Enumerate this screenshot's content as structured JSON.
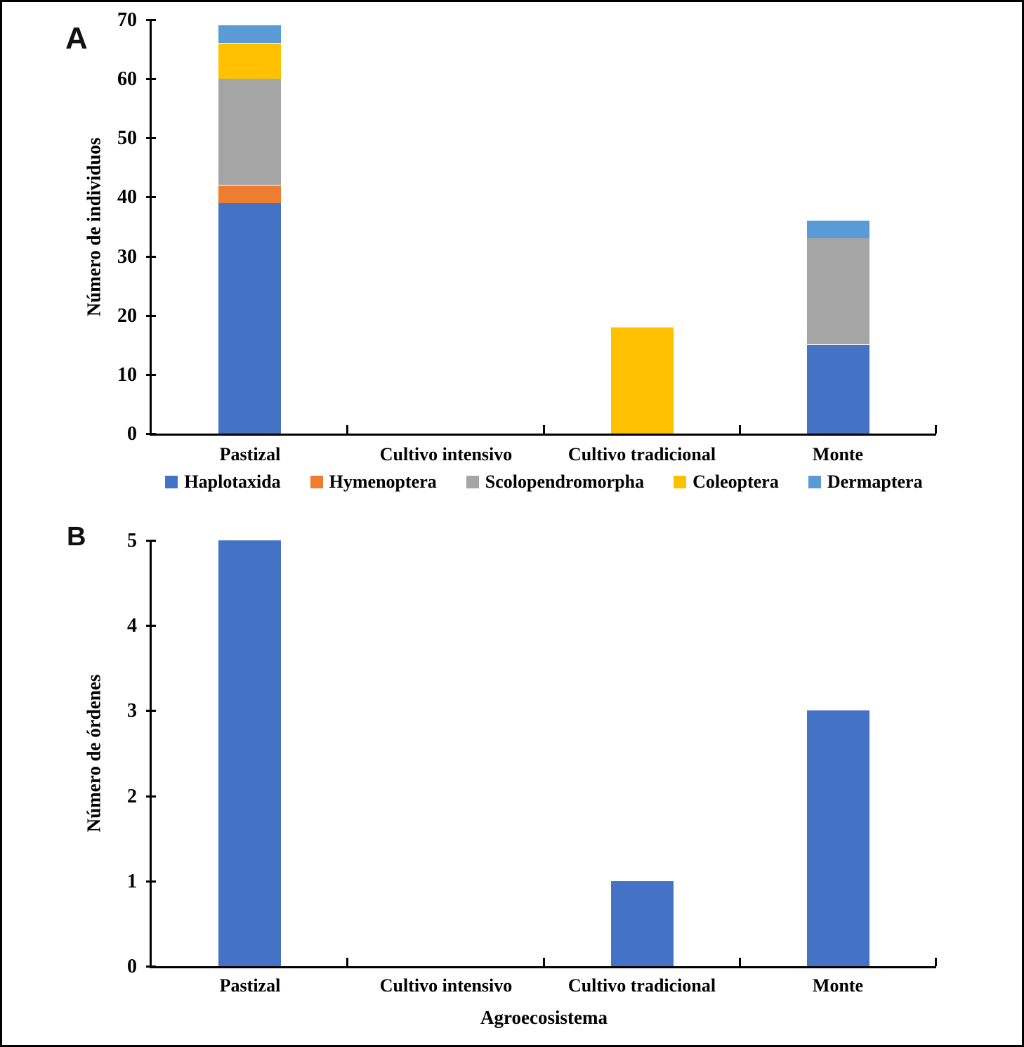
{
  "panels": [
    {
      "label": "A"
    },
    {
      "label": "B"
    }
  ],
  "colors": {
    "haplotaxida_blue": "#4472C4",
    "hymenoptera_orange": "#ED7D31",
    "scolopendromorpha_gray": "#A5A5A5",
    "coleoptera_yellow": "#FFC000",
    "dermaptera_light_blue": "#5B9BD5",
    "axis_black": "#000000"
  },
  "chart_data": [
    {
      "type": "bar",
      "subtype": "stacked",
      "panel": "A",
      "title": "",
      "xlabel": "",
      "ylabel": "Número de individuos",
      "categories": [
        "Pastizal",
        "Cultivo intensivo",
        "Cultivo tradicional",
        "Monte"
      ],
      "series": [
        {
          "name": "Haplotaxida",
          "color": "#4472C4",
          "values": [
            39,
            0,
            0,
            15
          ]
        },
        {
          "name": "Hymenoptera",
          "color": "#ED7D31",
          "values": [
            3,
            0,
            0,
            0
          ]
        },
        {
          "name": "Scolopendromorpha",
          "color": "#A5A5A5",
          "values": [
            18,
            0,
            0,
            18
          ]
        },
        {
          "name": "Coleoptera",
          "color": "#FFC000",
          "values": [
            6,
            0,
            18,
            0
          ]
        },
        {
          "name": "Dermaptera",
          "color": "#5B9BD5",
          "values": [
            3,
            0,
            0,
            3
          ]
        }
      ],
      "totals": [
        69,
        0,
        18,
        36
      ],
      "ylim": [
        0,
        70
      ],
      "ytick_step": 10,
      "ytick_labels": [
        "0",
        "10",
        "20",
        "30",
        "40",
        "50",
        "60",
        "70"
      ],
      "grid": false,
      "legend_position": "bottom",
      "legend_entries": [
        "Haplotaxida",
        "Hymenoptera",
        "Scolopendromorpha",
        "Coleoptera",
        "Dermaptera"
      ]
    },
    {
      "type": "bar",
      "subtype": "simple",
      "panel": "B",
      "title": "",
      "xlabel": "Agroecosistema",
      "ylabel": "Número de órdenes",
      "categories": [
        "Pastizal",
        "Cultivo intensivo",
        "Cultivo tradicional",
        "Monte"
      ],
      "values": [
        5,
        0,
        1,
        3
      ],
      "bar_color": "#4472C4",
      "ylim": [
        0,
        5
      ],
      "ytick_step": 1,
      "ytick_labels": [
        "0",
        "1",
        "2",
        "3",
        "4",
        "5"
      ],
      "grid": false,
      "legend_position": "none"
    }
  ]
}
